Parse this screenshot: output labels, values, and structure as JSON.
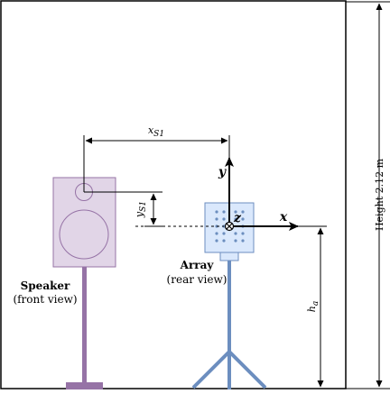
{
  "labels": {
    "speaker_title": "Speaker",
    "speaker_sub": "(front view)",
    "array_title": "Array",
    "array_sub": "(rear view)",
    "x_offset": "x",
    "x_offset_sub": "S1",
    "y_offset": "y",
    "y_offset_sub": "S1",
    "height_a": "h",
    "height_a_sub": "a",
    "room_height": "Height 2.12 m",
    "axis_x": "x",
    "axis_y": "y",
    "axis_z": "z"
  },
  "colors": {
    "speaker_fill": "#e1d5e7",
    "speaker_stroke": "#9673a6",
    "array_fill": "#dae8fc",
    "array_stroke": "#6c8ebf",
    "array_stand": "#6c8ebf",
    "mic_dot": "#6c8ebf",
    "ink": "#000000"
  }
}
